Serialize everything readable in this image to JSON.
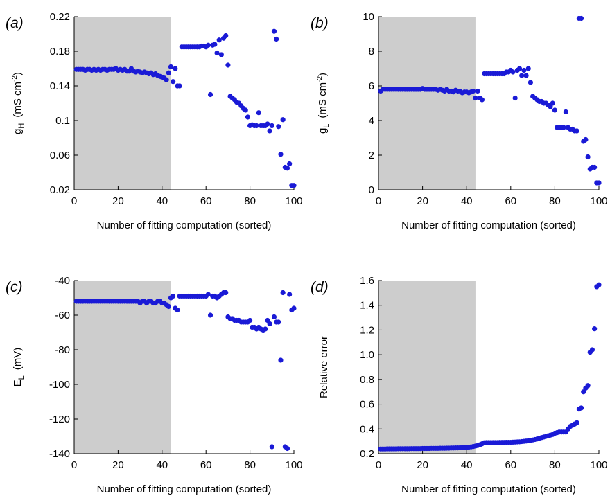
{
  "figure": {
    "point_color": "#1a1ad6",
    "shade_color": "#cdcdcd",
    "axis_color": "#000000"
  },
  "chart_data": [
    {
      "type": "scatter",
      "panel_label": "(a)",
      "xlabel": "Number of fitting computation (sorted)",
      "ylabel_main": "g",
      "ylabel_sub": "H",
      "ylabel_unit": "(mS cm",
      "ylabel_sup": "-2",
      "ylabel_close": ")",
      "xlim": [
        0,
        100
      ],
      "ylim": [
        0.02,
        0.22
      ],
      "xticks": [
        0,
        20,
        40,
        60,
        80,
        100
      ],
      "yticks": [
        0.02,
        0.06,
        0.1,
        0.14,
        0.18,
        0.22
      ],
      "ytick_labels": [
        "0.02",
        "0.06",
        "0.1",
        "0.14",
        "0.18",
        "0.22"
      ],
      "xtick_labels": [
        "0",
        "20",
        "40",
        "60",
        "80",
        "100"
      ],
      "shaded_x_range": [
        0,
        44
      ],
      "x": [
        1,
        2,
        3,
        4,
        5,
        6,
        7,
        8,
        9,
        10,
        11,
        12,
        13,
        14,
        15,
        16,
        17,
        18,
        19,
        20,
        21,
        22,
        23,
        24,
        25,
        26,
        27,
        28,
        29,
        30,
        31,
        32,
        33,
        34,
        35,
        36,
        37,
        38,
        39,
        40,
        41,
        42,
        43,
        44,
        45,
        46,
        47,
        48,
        49,
        50,
        51,
        52,
        53,
        54,
        55,
        56,
        57,
        58,
        59,
        60,
        61,
        62,
        63,
        64,
        65,
        66,
        67,
        68,
        69,
        70,
        71,
        72,
        73,
        74,
        75,
        76,
        77,
        78,
        79,
        80,
        81,
        82,
        83,
        84,
        85,
        86,
        87,
        88,
        89,
        90,
        91,
        92,
        93,
        94,
        95,
        96,
        97,
        98,
        99,
        100
      ],
      "y": [
        0.159,
        0.159,
        0.159,
        0.159,
        0.158,
        0.159,
        0.159,
        0.158,
        0.159,
        0.158,
        0.159,
        0.158,
        0.159,
        0.159,
        0.158,
        0.159,
        0.159,
        0.159,
        0.16,
        0.158,
        0.159,
        0.158,
        0.159,
        0.157,
        0.157,
        0.16,
        0.157,
        0.156,
        0.157,
        0.156,
        0.155,
        0.156,
        0.155,
        0.154,
        0.155,
        0.153,
        0.154,
        0.152,
        0.151,
        0.15,
        0.149,
        0.147,
        0.155,
        0.162,
        0.145,
        0.16,
        0.14,
        0.14,
        0.185,
        0.185,
        0.185,
        0.185,
        0.185,
        0.185,
        0.185,
        0.185,
        0.185,
        0.186,
        0.186,
        0.185,
        0.187,
        0.13,
        0.187,
        0.188,
        0.178,
        0.193,
        0.176,
        0.195,
        0.198,
        0.164,
        0.128,
        0.126,
        0.124,
        0.121,
        0.12,
        0.117,
        0.114,
        0.112,
        0.104,
        0.094,
        0.095,
        0.094,
        0.094,
        0.109,
        0.094,
        0.094,
        0.094,
        0.096,
        0.088,
        0.094,
        0.203,
        0.194,
        0.093,
        0.061,
        0.101,
        0.046,
        0.045,
        0.05,
        0.025,
        0.025
      ]
    },
    {
      "type": "scatter",
      "panel_label": "(b)",
      "xlabel": "Number of fitting computation (sorted)",
      "ylabel_main": "g",
      "ylabel_sub": "L",
      "ylabel_unit": "(mS cm",
      "ylabel_sup": "-2",
      "ylabel_close": ")",
      "xlim": [
        0,
        100
      ],
      "ylim": [
        0,
        10
      ],
      "xticks": [
        0,
        20,
        40,
        60,
        80,
        100
      ],
      "yticks": [
        0,
        2,
        4,
        6,
        8,
        10
      ],
      "ytick_labels": [
        "0",
        "2",
        "4",
        "6",
        "8",
        "10"
      ],
      "xtick_labels": [
        "0",
        "20",
        "40",
        "60",
        "80",
        "100"
      ],
      "shaded_x_range": [
        0,
        44
      ],
      "x": [
        1,
        2,
        3,
        4,
        5,
        6,
        7,
        8,
        9,
        10,
        11,
        12,
        13,
        14,
        15,
        16,
        17,
        18,
        19,
        20,
        21,
        22,
        23,
        24,
        25,
        26,
        27,
        28,
        29,
        30,
        31,
        32,
        33,
        34,
        35,
        36,
        37,
        38,
        39,
        40,
        41,
        42,
        43,
        44,
        45,
        46,
        47,
        48,
        49,
        50,
        51,
        52,
        53,
        54,
        55,
        56,
        57,
        58,
        59,
        60,
        61,
        62,
        63,
        64,
        65,
        66,
        67,
        68,
        69,
        70,
        71,
        72,
        73,
        74,
        75,
        76,
        77,
        78,
        79,
        80,
        81,
        82,
        83,
        84,
        85,
        86,
        87,
        88,
        89,
        90,
        91,
        92,
        93,
        94,
        95,
        96,
        97,
        98,
        99,
        100
      ],
      "y": [
        5.7,
        5.8,
        5.8,
        5.8,
        5.8,
        5.8,
        5.8,
        5.8,
        5.8,
        5.8,
        5.8,
        5.8,
        5.8,
        5.8,
        5.8,
        5.8,
        5.8,
        5.8,
        5.8,
        5.85,
        5.8,
        5.8,
        5.8,
        5.8,
        5.8,
        5.8,
        5.75,
        5.8,
        5.75,
        5.7,
        5.8,
        5.7,
        5.7,
        5.65,
        5.75,
        5.7,
        5.7,
        5.6,
        5.65,
        5.65,
        5.6,
        5.65,
        5.7,
        5.3,
        5.7,
        5.3,
        5.2,
        6.7,
        6.7,
        6.7,
        6.7,
        6.7,
        6.7,
        6.7,
        6.7,
        6.7,
        6.7,
        6.8,
        6.8,
        6.9,
        6.8,
        5.3,
        6.9,
        7.0,
        6.6,
        6.9,
        6.6,
        7.0,
        6.2,
        5.4,
        5.3,
        5.2,
        5.1,
        5.1,
        5.0,
        5.0,
        4.9,
        4.8,
        5.0,
        4.6,
        3.6,
        3.6,
        3.6,
        3.6,
        4.5,
        3.6,
        3.5,
        3.5,
        3.4,
        3.4,
        9.9,
        9.9,
        2.8,
        2.9,
        1.9,
        1.2,
        1.3,
        1.3,
        0.4,
        0.4
      ]
    },
    {
      "type": "scatter",
      "panel_label": "(c)",
      "xlabel": "Number of fitting computation (sorted)",
      "ylabel_main": "E",
      "ylabel_sub": "L",
      "ylabel_unit": "(mV)",
      "ylabel_sup": "",
      "ylabel_close": "",
      "xlim": [
        0,
        100
      ],
      "ylim": [
        -140,
        -40
      ],
      "xticks": [
        0,
        20,
        40,
        60,
        80,
        100
      ],
      "yticks": [
        -140,
        -120,
        -100,
        -80,
        -60,
        -40
      ],
      "ytick_labels": [
        "-140",
        "-120",
        "-100",
        "-80",
        "-60",
        "-40"
      ],
      "xtick_labels": [
        "0",
        "20",
        "40",
        "60",
        "80",
        "100"
      ],
      "shaded_x_range": [
        0,
        44
      ],
      "x": [
        1,
        2,
        3,
        4,
        5,
        6,
        7,
        8,
        9,
        10,
        11,
        12,
        13,
        14,
        15,
        16,
        17,
        18,
        19,
        20,
        21,
        22,
        23,
        24,
        25,
        26,
        27,
        28,
        29,
        30,
        31,
        32,
        33,
        34,
        35,
        36,
        37,
        38,
        39,
        40,
        41,
        42,
        43,
        44,
        45,
        46,
        47,
        48,
        49,
        50,
        51,
        52,
        53,
        54,
        55,
        56,
        57,
        58,
        59,
        60,
        61,
        62,
        63,
        64,
        65,
        66,
        67,
        68,
        69,
        70,
        71,
        72,
        73,
        74,
        75,
        76,
        77,
        78,
        79,
        80,
        81,
        82,
        83,
        84,
        85,
        86,
        87,
        88,
        89,
        90,
        91,
        92,
        93,
        94,
        95,
        96,
        97,
        98,
        99,
        100
      ],
      "y": [
        -52,
        -52,
        -52,
        -52,
        -52,
        -52,
        -52,
        -52,
        -52,
        -52,
        -52,
        -52,
        -52,
        -52,
        -52,
        -52,
        -52,
        -52,
        -52,
        -52,
        -52,
        -52,
        -52,
        -52,
        -52,
        -52,
        -52,
        -52,
        -52,
        -53,
        -52,
        -52,
        -53,
        -52,
        -52,
        -53,
        -53,
        -52,
        -52,
        -53,
        -53,
        -54,
        -55,
        -50,
        -49,
        -56,
        -57,
        -49,
        -49,
        -49,
        -49,
        -49,
        -49,
        -49,
        -49,
        -49,
        -49,
        -49,
        -49,
        -49,
        -48,
        -60,
        -49,
        -49,
        -50,
        -49,
        -48,
        -47,
        -47,
        -61,
        -62,
        -62,
        -63,
        -63,
        -63,
        -64,
        -64,
        -64,
        -64,
        -63,
        -67,
        -67,
        -68,
        -67,
        -68,
        -69,
        -68,
        -63,
        -65,
        -136,
        -61,
        -64,
        -64,
        -86,
        -47,
        -136,
        -137,
        -48,
        -57,
        -56
      ]
    },
    {
      "type": "scatter",
      "panel_label": "(d)",
      "xlabel": "Number of fitting computation (sorted)",
      "ylabel_main": "Relative error",
      "ylabel_sub": "",
      "ylabel_unit": "",
      "ylabel_sup": "",
      "ylabel_close": "",
      "xlim": [
        0,
        100
      ],
      "ylim": [
        0.2,
        1.6
      ],
      "xticks": [
        0,
        20,
        40,
        60,
        80,
        100
      ],
      "yticks": [
        0.2,
        0.4,
        0.6,
        0.8,
        1.0,
        1.2,
        1.4,
        1.6
      ],
      "ytick_labels": [
        "0.2",
        "0.4",
        "0.6",
        "0.8",
        "1.0",
        "1.2",
        "1.4",
        "1.6"
      ],
      "xtick_labels": [
        "0",
        "20",
        "40",
        "60",
        "80",
        "100"
      ],
      "shaded_x_range": [
        0,
        44
      ],
      "x": [
        1,
        2,
        3,
        4,
        5,
        6,
        7,
        8,
        9,
        10,
        11,
        12,
        13,
        14,
        15,
        16,
        17,
        18,
        19,
        20,
        21,
        22,
        23,
        24,
        25,
        26,
        27,
        28,
        29,
        30,
        31,
        32,
        33,
        34,
        35,
        36,
        37,
        38,
        39,
        40,
        41,
        42,
        43,
        44,
        45,
        46,
        47,
        48,
        49,
        50,
        51,
        52,
        53,
        54,
        55,
        56,
        57,
        58,
        59,
        60,
        61,
        62,
        63,
        64,
        65,
        66,
        67,
        68,
        69,
        70,
        71,
        72,
        73,
        74,
        75,
        76,
        77,
        78,
        79,
        80,
        81,
        82,
        83,
        84,
        85,
        86,
        87,
        88,
        89,
        90,
        91,
        92,
        93,
        94,
        95,
        96,
        97,
        98,
        99,
        100
      ],
      "y": [
        0.238,
        0.238,
        0.238,
        0.239,
        0.239,
        0.239,
        0.239,
        0.239,
        0.24,
        0.24,
        0.24,
        0.24,
        0.24,
        0.24,
        0.241,
        0.241,
        0.241,
        0.241,
        0.241,
        0.242,
        0.242,
        0.242,
        0.242,
        0.243,
        0.243,
        0.243,
        0.243,
        0.244,
        0.244,
        0.244,
        0.245,
        0.245,
        0.246,
        0.246,
        0.247,
        0.247,
        0.248,
        0.249,
        0.25,
        0.251,
        0.253,
        0.255,
        0.258,
        0.262,
        0.266,
        0.272,
        0.28,
        0.288,
        0.29,
        0.29,
        0.29,
        0.29,
        0.29,
        0.29,
        0.291,
        0.291,
        0.291,
        0.292,
        0.292,
        0.292,
        0.293,
        0.294,
        0.295,
        0.296,
        0.298,
        0.3,
        0.302,
        0.305,
        0.308,
        0.311,
        0.315,
        0.319,
        0.325,
        0.33,
        0.335,
        0.34,
        0.345,
        0.35,
        0.355,
        0.365,
        0.37,
        0.375,
        0.375,
        0.375,
        0.375,
        0.4,
        0.42,
        0.43,
        0.44,
        0.45,
        0.56,
        0.57,
        0.7,
        0.73,
        0.75,
        1.02,
        1.04,
        1.21,
        1.55,
        1.565
      ]
    }
  ]
}
